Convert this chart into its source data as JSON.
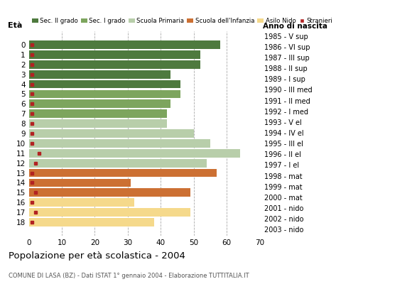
{
  "ages": [
    18,
    17,
    16,
    15,
    14,
    13,
    12,
    11,
    10,
    9,
    8,
    7,
    6,
    5,
    4,
    3,
    2,
    1,
    0
  ],
  "years": [
    "1985 - V sup",
    "1986 - VI sup",
    "1987 - III sup",
    "1988 - II sup",
    "1989 - I sup",
    "1990 - III med",
    "1991 - II med",
    "1992 - I med",
    "1993 - V el",
    "1994 - IV el",
    "1995 - III el",
    "1996 - II el",
    "1997 - I el",
    "1998 - mat",
    "1999 - mat",
    "2000 - mat",
    "2001 - nido",
    "2002 - nido",
    "2003 - nido"
  ],
  "bar_values": [
    58,
    52,
    52,
    43,
    46,
    46,
    43,
    42,
    42,
    50,
    55,
    64,
    54,
    57,
    31,
    49,
    32,
    49,
    38
  ],
  "bar_colors": [
    "#4e7a3e",
    "#4e7a3e",
    "#4e7a3e",
    "#4e7a3e",
    "#4e7a3e",
    "#7da55e",
    "#7da55e",
    "#7da55e",
    "#b8ceaa",
    "#b8ceaa",
    "#b8ceaa",
    "#b8ceaa",
    "#b8ceaa",
    "#cc7033",
    "#cc7033",
    "#cc7033",
    "#f5d98b",
    "#f5d98b",
    "#f5d98b"
  ],
  "stranieri_values": [
    1,
    1,
    1,
    1,
    1,
    1,
    1,
    1,
    1,
    1,
    1,
    3,
    2,
    1,
    1,
    2,
    1,
    2,
    1
  ],
  "stranieri_color": "#b22222",
  "legend_labels": [
    "Sec. II grado",
    "Sec. I grado",
    "Scuola Primaria",
    "Scuola dell'Infanzia",
    "Asilo Nido",
    "Stranieri"
  ],
  "legend_colors": [
    "#4e7a3e",
    "#7da55e",
    "#b8ceaa",
    "#cc7033",
    "#f5d98b",
    "#b22222"
  ],
  "title": "Popolazione per età scolastica - 2004",
  "subtitle": "COMUNE DI LASA (BZ) - Dati ISTAT 1° gennaio 2004 - Elaborazione TUTTITALIA.IT",
  "xlabel_age": "Età",
  "xlabel_year": "Anno di nascita",
  "xlim": [
    0,
    70
  ],
  "xticks": [
    0,
    10,
    20,
    30,
    40,
    50,
    60,
    70
  ],
  "background_color": "#ffffff",
  "grid_color": "#aaaaaa"
}
